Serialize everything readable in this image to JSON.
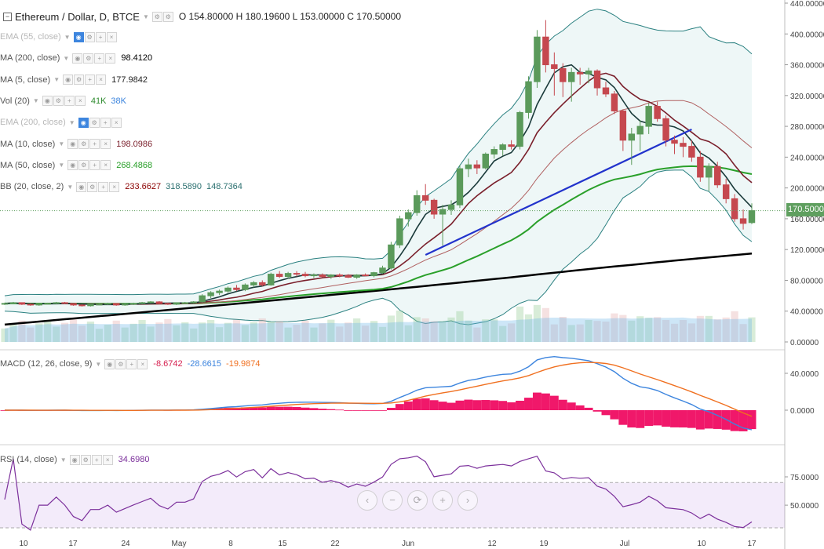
{
  "title_row": {
    "title": "Ethereum / Dollar, D, BTCE",
    "ohlc": "O 154.80000  H 180.19600  L 153.00000  C 170.50000"
  },
  "indicators": [
    {
      "label": "EMA (55, close)",
      "dim": true,
      "values": []
    },
    {
      "label": "MA (200, close)",
      "dim": false,
      "values": [
        {
          "text": "98.4120",
          "color": "#000000"
        }
      ]
    },
    {
      "label": "MA (5, close)",
      "dim": false,
      "values": [
        {
          "text": "177.9842",
          "color": "#222222"
        }
      ]
    },
    {
      "label": "Vol (20)",
      "dim": false,
      "values": [
        {
          "text": "41K",
          "color": "#2e8b2e"
        },
        {
          "text": "38K",
          "color": "#3d85de"
        }
      ]
    },
    {
      "label": "EMA (200, close)",
      "dim": true,
      "values": []
    },
    {
      "label": "MA (10, close)",
      "dim": false,
      "values": [
        {
          "text": "198.0986",
          "color": "#7a1f2b"
        }
      ]
    },
    {
      "label": "MA (50, close)",
      "dim": false,
      "values": [
        {
          "text": "268.4868",
          "color": "#2aa02a"
        }
      ]
    },
    {
      "label": "BB (20, close, 2)",
      "dim": false,
      "values": [
        {
          "text": "233.6627",
          "color": "#8b0000"
        },
        {
          "text": "318.5890",
          "color": "#2a6f6f"
        },
        {
          "text": "148.7364",
          "color": "#2a6f6f"
        }
      ]
    }
  ],
  "macd": {
    "label": "MACD (12, 26, close, 9)",
    "values": [
      {
        "text": "-8.6742",
        "color": "#d62050"
      },
      {
        "text": "-28.6615",
        "color": "#3d85de"
      },
      {
        "text": "-19.9874",
        "color": "#f07020"
      }
    ]
  },
  "rsi": {
    "label": "RSI (14, close)",
    "values": [
      {
        "text": "34.6980",
        "color": "#7b2f9b"
      }
    ]
  },
  "last_price": "170.50000",
  "nav_buttons": [
    "‹",
    "−",
    "⟳",
    "+",
    "›"
  ],
  "chart_data": {
    "type": "candlestick",
    "price_axis": {
      "ticks": [
        "440.00000",
        "400.00000",
        "360.00000",
        "320.00000",
        "280.00000",
        "240.00000",
        "200.00000",
        "160.00000",
        "120.00000",
        "80.00000",
        "40.00000",
        "0.00000"
      ],
      "ylim": [
        0,
        440
      ]
    },
    "macd_axis": {
      "ticks": [
        "40.0000",
        "0.0000"
      ]
    },
    "rsi_axis": {
      "ticks": [
        "75.0000",
        "50.0000"
      ]
    },
    "x_ticks": [
      "10",
      "17",
      "24",
      "May",
      "8",
      "15",
      "22",
      "Jun",
      "12",
      "19",
      "Jul",
      "10",
      "17"
    ],
    "colors": {
      "up": "#5b9a5b",
      "down": "#c5484f",
      "ma200": "#000000",
      "ma50": "#2aa02a",
      "ma10": "#7a1f2b",
      "ma5": "#1a3a3a",
      "bb": "#2a8080",
      "trend": "#2233cc",
      "macd": "#3d85de",
      "signal": "#f07020",
      "hist": "#f0186a",
      "rsi": "#7b2f9b"
    },
    "candles_ohlc": [
      [
        49,
        51,
        48,
        50
      ],
      [
        50,
        52,
        49,
        51
      ],
      [
        51,
        51,
        48,
        49
      ],
      [
        49,
        50,
        47,
        48
      ],
      [
        48,
        50,
        47,
        50
      ],
      [
        50,
        51,
        49,
        50
      ],
      [
        50,
        52,
        49,
        51
      ],
      [
        51,
        52,
        49,
        50
      ],
      [
        50,
        50,
        47,
        48
      ],
      [
        48,
        49,
        46,
        47
      ],
      [
        47,
        49,
        46,
        49
      ],
      [
        49,
        50,
        48,
        49
      ],
      [
        49,
        51,
        48,
        50
      ],
      [
        50,
        50,
        47,
        48
      ],
      [
        48,
        50,
        47,
        49
      ],
      [
        49,
        51,
        48,
        50
      ],
      [
        50,
        52,
        49,
        51
      ],
      [
        51,
        53,
        50,
        52
      ],
      [
        52,
        53,
        49,
        50
      ],
      [
        50,
        51,
        48,
        49
      ],
      [
        49,
        51,
        48,
        51
      ],
      [
        51,
        52,
        50,
        51
      ],
      [
        51,
        53,
        50,
        52
      ],
      [
        52,
        62,
        51,
        60
      ],
      [
        60,
        66,
        57,
        64
      ],
      [
        64,
        68,
        61,
        66
      ],
      [
        66,
        72,
        64,
        70
      ],
      [
        70,
        74,
        66,
        68
      ],
      [
        68,
        76,
        66,
        74
      ],
      [
        74,
        79,
        71,
        77
      ],
      [
        77,
        80,
        72,
        74
      ],
      [
        74,
        90,
        73,
        88
      ],
      [
        88,
        92,
        83,
        85
      ],
      [
        85,
        91,
        82,
        89
      ],
      [
        89,
        92,
        85,
        88
      ],
      [
        88,
        91,
        84,
        86
      ],
      [
        86,
        89,
        83,
        87
      ],
      [
        87,
        89,
        84,
        85
      ],
      [
        85,
        88,
        82,
        87
      ],
      [
        87,
        89,
        84,
        86
      ],
      [
        86,
        88,
        83,
        84
      ],
      [
        84,
        88,
        82,
        87
      ],
      [
        87,
        89,
        85,
        86
      ],
      [
        86,
        91,
        84,
        90
      ],
      [
        90,
        99,
        88,
        96
      ],
      [
        96,
        130,
        94,
        126
      ],
      [
        126,
        164,
        122,
        160
      ],
      [
        160,
        172,
        150,
        168
      ],
      [
        168,
        197,
        164,
        190
      ],
      [
        190,
        205,
        178,
        184
      ],
      [
        184,
        186,
        160,
        166
      ],
      [
        166,
        178,
        125,
        172
      ],
      [
        172,
        184,
        165,
        178
      ],
      [
        178,
        230,
        174,
        225
      ],
      [
        225,
        238,
        214,
        230
      ],
      [
        230,
        236,
        218,
        226
      ],
      [
        226,
        246,
        224,
        244
      ],
      [
        244,
        254,
        238,
        250
      ],
      [
        250,
        258,
        242,
        256
      ],
      [
        256,
        262,
        250,
        254
      ],
      [
        254,
        300,
        250,
        298
      ],
      [
        298,
        345,
        290,
        338
      ],
      [
        338,
        405,
        330,
        396
      ],
      [
        396,
        418,
        350,
        360
      ],
      [
        360,
        376,
        320,
        355
      ],
      [
        355,
        362,
        318,
        338
      ],
      [
        338,
        356,
        312,
        350
      ],
      [
        350,
        356,
        334,
        348
      ],
      [
        348,
        356,
        336,
        352
      ],
      [
        352,
        354,
        320,
        330
      ],
      [
        330,
        338,
        318,
        322
      ],
      [
        322,
        326,
        296,
        300
      ],
      [
        300,
        302,
        248,
        262
      ],
      [
        262,
        278,
        230,
        270
      ],
      [
        270,
        288,
        248,
        280
      ],
      [
        280,
        310,
        270,
        306
      ],
      [
        306,
        312,
        286,
        290
      ],
      [
        290,
        294,
        254,
        262
      ],
      [
        262,
        268,
        244,
        258
      ],
      [
        258,
        266,
        240,
        254
      ],
      [
        254,
        262,
        234,
        240
      ],
      [
        240,
        248,
        208,
        214
      ],
      [
        214,
        232,
        196,
        228
      ],
      [
        228,
        234,
        200,
        204
      ],
      [
        204,
        212,
        180,
        186
      ],
      [
        186,
        192,
        156,
        160
      ],
      [
        160,
        172,
        146,
        154
      ],
      [
        155,
        180,
        153,
        170.5
      ]
    ]
  }
}
